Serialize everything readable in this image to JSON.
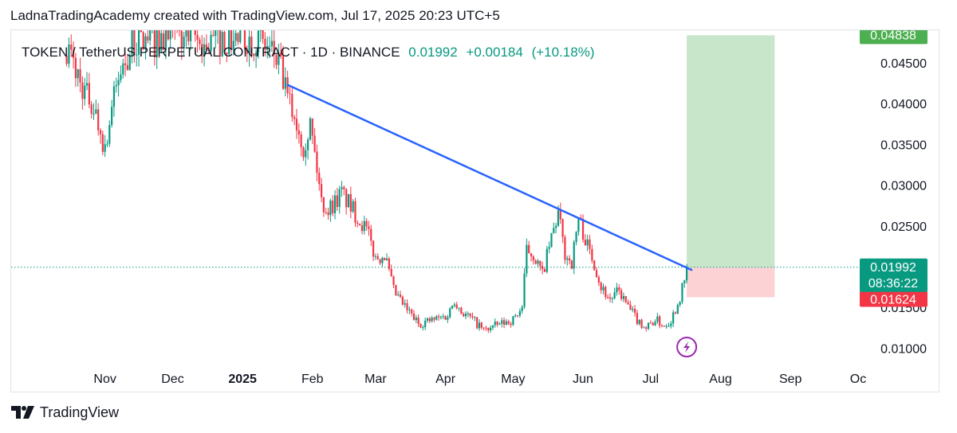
{
  "caption": "LadnaTradingAcademy created with TradingView.com, Jul 17, 2025 20:23 UTC+5",
  "symbol": {
    "name": "TOKEN / TetherUS PERPETUAL CONTRACT · 1D · BINANCE",
    "last": "0.01992",
    "change": "+0.00184",
    "change_pct": "(+10.18%)"
  },
  "brand": "TradingView",
  "colors": {
    "up": "#089981",
    "down": "#f23645",
    "trendline": "#2962ff",
    "target_zone": "#c8e6c9",
    "stop_zone": "#fcd2d5",
    "target_badge": "#4caf50",
    "stop_badge": "#f23645"
  },
  "chart_data": {
    "type": "candlestick",
    "x_axis": {
      "labels": [
        "Nov",
        "Dec",
        "2025",
        "Feb",
        "Mar",
        "Apr",
        "May",
        "Jun",
        "Jul",
        "Aug",
        "Sep",
        "Oc"
      ]
    },
    "y_axis": {
      "ticks": [
        "0.04500",
        "0.04000",
        "0.03500",
        "0.03000",
        "0.02500",
        "0.01500",
        "0.01000"
      ],
      "ylim": [
        0.0075,
        0.049
      ],
      "scale": "linear"
    },
    "price_tags": {
      "target": "0.04838",
      "current": "0.01992",
      "countdown": "08:36:22",
      "stop": "0.01624"
    },
    "levels": {
      "target": 0.04838,
      "current": 0.01992,
      "stop": 0.01624
    },
    "trendline": {
      "from": {
        "date": "2025-01-21",
        "price": 0.0423
      },
      "to": {
        "date": "2025-07-17",
        "price": 0.0196
      }
    },
    "position": {
      "type": "long",
      "start_date": "2025-07-17",
      "end_date": "2025-08-25",
      "entry": 0.01992,
      "target": 0.04838,
      "stop": 0.01624
    },
    "series": [
      {
        "date": "2024-10-15",
        "close": 0.047
      },
      {
        "date": "2024-10-22",
        "close": 0.042
      },
      {
        "date": "2024-10-27",
        "close": 0.0395
      },
      {
        "date": "2024-11-01",
        "close": 0.0345
      },
      {
        "date": "2024-11-04",
        "close": 0.0395
      },
      {
        "date": "2024-11-08",
        "close": 0.044
      },
      {
        "date": "2024-11-14",
        "close": 0.0475
      },
      {
        "date": "2024-11-20",
        "close": 0.0478
      },
      {
        "date": "2024-12-10",
        "close": 0.048
      },
      {
        "date": "2024-12-15",
        "close": 0.047
      },
      {
        "date": "2024-12-20",
        "close": 0.0478
      },
      {
        "date": "2025-01-07",
        "close": 0.048
      },
      {
        "date": "2025-01-15",
        "close": 0.046
      },
      {
        "date": "2025-01-18",
        "close": 0.044
      },
      {
        "date": "2025-01-21",
        "close": 0.0405
      },
      {
        "date": "2025-01-24",
        "close": 0.0385
      },
      {
        "date": "2025-01-28",
        "close": 0.035
      },
      {
        "date": "2025-01-31",
        "close": 0.0375
      },
      {
        "date": "2025-02-03",
        "close": 0.032
      },
      {
        "date": "2025-02-05",
        "close": 0.028
      },
      {
        "date": "2025-02-08",
        "close": 0.027
      },
      {
        "date": "2025-02-14",
        "close": 0.029
      },
      {
        "date": "2025-02-20",
        "close": 0.0265
      },
      {
        "date": "2025-02-25",
        "close": 0.0245
      },
      {
        "date": "2025-03-01",
        "close": 0.021
      },
      {
        "date": "2025-03-05",
        "close": 0.0215
      },
      {
        "date": "2025-03-09",
        "close": 0.017
      },
      {
        "date": "2025-03-14",
        "close": 0.015
      },
      {
        "date": "2025-03-20",
        "close": 0.013
      },
      {
        "date": "2025-03-27",
        "close": 0.0135
      },
      {
        "date": "2025-04-02",
        "close": 0.014
      },
      {
        "date": "2025-04-05",
        "close": 0.016
      },
      {
        "date": "2025-04-08",
        "close": 0.0145
      },
      {
        "date": "2025-04-13",
        "close": 0.0135
      },
      {
        "date": "2025-04-18",
        "close": 0.0122
      },
      {
        "date": "2025-04-24",
        "close": 0.0128
      },
      {
        "date": "2025-05-01",
        "close": 0.0135
      },
      {
        "date": "2025-05-05",
        "close": 0.015
      },
      {
        "date": "2025-05-07",
        "close": 0.022
      },
      {
        "date": "2025-05-10",
        "close": 0.0215
      },
      {
        "date": "2025-05-14",
        "close": 0.019
      },
      {
        "date": "2025-05-18",
        "close": 0.0235
      },
      {
        "date": "2025-05-21",
        "close": 0.0265
      },
      {
        "date": "2025-05-24",
        "close": 0.0215
      },
      {
        "date": "2025-05-27",
        "close": 0.0205
      },
      {
        "date": "2025-05-30",
        "close": 0.026
      },
      {
        "date": "2025-06-03",
        "close": 0.0225
      },
      {
        "date": "2025-06-06",
        "close": 0.0205
      },
      {
        "date": "2025-06-09",
        "close": 0.0175
      },
      {
        "date": "2025-06-13",
        "close": 0.016
      },
      {
        "date": "2025-06-17",
        "close": 0.017
      },
      {
        "date": "2025-06-21",
        "close": 0.015
      },
      {
        "date": "2025-06-25",
        "close": 0.0135
      },
      {
        "date": "2025-06-29",
        "close": 0.0125
      },
      {
        "date": "2025-07-03",
        "close": 0.0135
      },
      {
        "date": "2025-07-07",
        "close": 0.0128
      },
      {
        "date": "2025-07-10",
        "close": 0.0135
      },
      {
        "date": "2025-07-13",
        "close": 0.0155
      },
      {
        "date": "2025-07-16",
        "close": 0.0181
      },
      {
        "date": "2025-07-17",
        "close": 0.01992
      }
    ]
  }
}
